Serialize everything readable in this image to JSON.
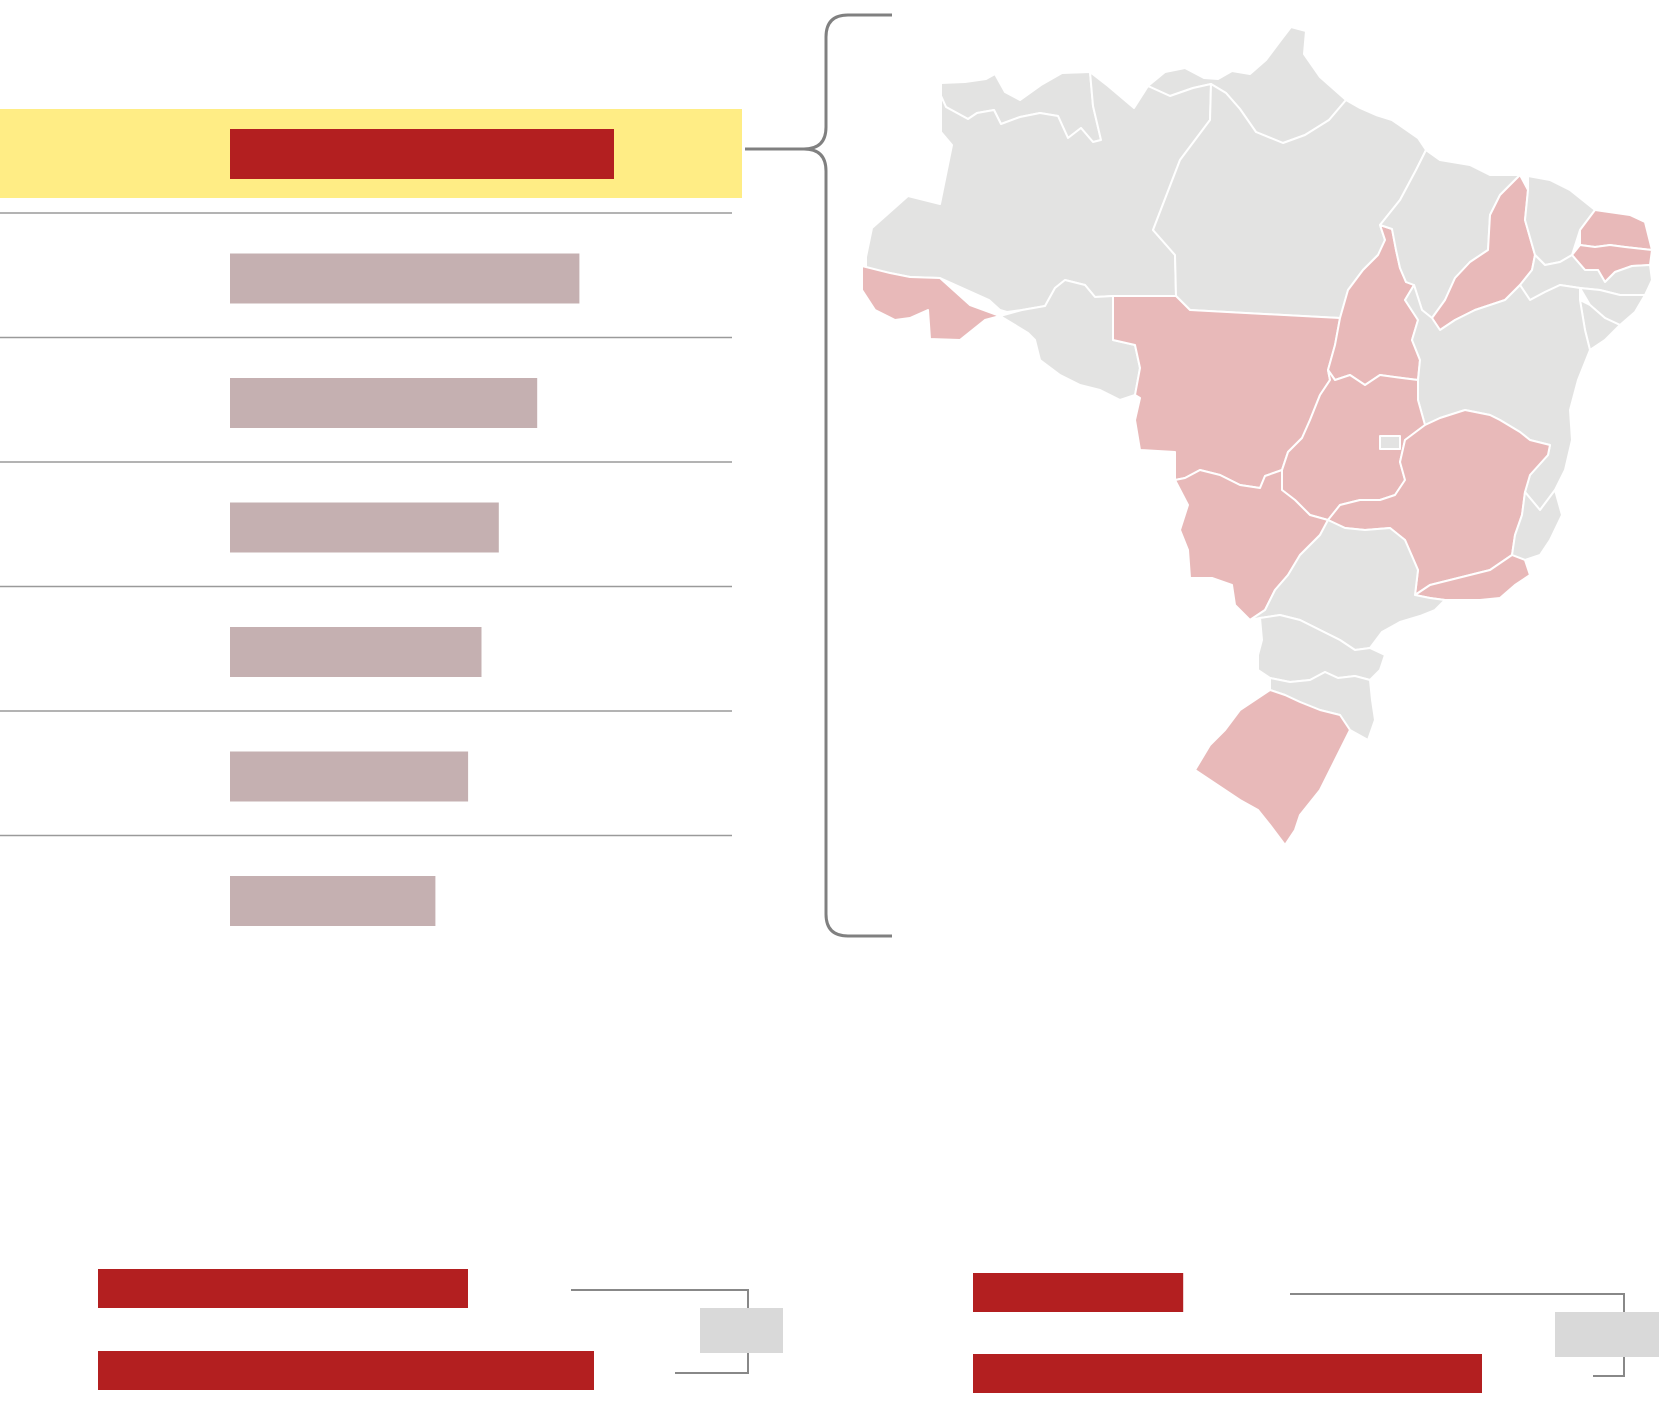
{
  "colors": {
    "highlight_band": "#ffed85",
    "bar_primary": "#b31f20",
    "bar_secondary": "#c5b0b1",
    "divider": "#9a9a9a",
    "bracket": "#808080",
    "map_base": "#e3e3e2",
    "map_selected": "#e8b9b9",
    "map_border": "#ffffff",
    "legend_box": "#d9d9d9",
    "connector": "#888888"
  },
  "chart_data": [
    {
      "type": "bar",
      "orientation": "horizontal",
      "title": "",
      "xlabel": "",
      "ylabel": "",
      "categories": [
        "",
        "",
        "",
        "",
        "",
        "",
        ""
      ],
      "values": [
        100,
        91,
        80,
        70,
        65.5,
        62,
        53.5
      ],
      "xlim": [
        0,
        100
      ],
      "highlighted_index": 0,
      "grid": false,
      "legend": "none"
    },
    {
      "type": "bar",
      "orientation": "horizontal",
      "title": "",
      "categories": [
        "",
        ""
      ],
      "values": [
        74.6,
        100
      ],
      "xlim": [
        0,
        100
      ],
      "legend": "none"
    },
    {
      "type": "bar",
      "orientation": "horizontal",
      "title": "",
      "categories": [
        "",
        ""
      ],
      "values": [
        41.3,
        100
      ],
      "xlim": [
        0,
        100
      ],
      "legend": "none"
    }
  ],
  "map": {
    "country": "Brazil",
    "states": [
      {
        "code": "RR",
        "selected": false
      },
      {
        "code": "AP",
        "selected": false
      },
      {
        "code": "AM",
        "selected": false
      },
      {
        "code": "PA",
        "selected": false
      },
      {
        "code": "AC",
        "selected": true
      },
      {
        "code": "RO",
        "selected": false
      },
      {
        "code": "MT",
        "selected": true
      },
      {
        "code": "TO",
        "selected": true
      },
      {
        "code": "MA",
        "selected": false
      },
      {
        "code": "PI",
        "selected": true
      },
      {
        "code": "CE",
        "selected": false
      },
      {
        "code": "RN",
        "selected": true
      },
      {
        "code": "PB",
        "selected": true
      },
      {
        "code": "PE",
        "selected": false
      },
      {
        "code": "AL",
        "selected": false
      },
      {
        "code": "SE",
        "selected": false
      },
      {
        "code": "BA",
        "selected": false
      },
      {
        "code": "GO",
        "selected": true
      },
      {
        "code": "DF",
        "selected": false
      },
      {
        "code": "MS",
        "selected": true
      },
      {
        "code": "MG",
        "selected": true
      },
      {
        "code": "ES",
        "selected": false
      },
      {
        "code": "RJ",
        "selected": true
      },
      {
        "code": "SP",
        "selected": false
      },
      {
        "code": "PR",
        "selected": false
      },
      {
        "code": "SC",
        "selected": false
      },
      {
        "code": "RS",
        "selected": true
      }
    ]
  }
}
